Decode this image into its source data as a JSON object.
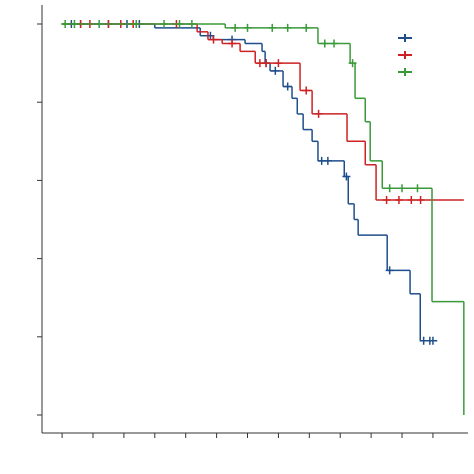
{
  "chart_data": {
    "type": "step",
    "xlim": [
      -0.65,
      13.07
    ],
    "xticks": [
      0,
      1,
      2,
      3,
      4,
      5,
      6,
      7,
      8,
      9,
      10,
      11,
      12
    ],
    "ylim": [
      -0.046,
      1.0
    ],
    "yticks": [
      0,
      0.2,
      0.4,
      0.6,
      0.8,
      1.0
    ],
    "legend": "top-right",
    "series": [
      {
        "color": "#1f4e8c",
        "x": [
          0,
          3.0,
          4.47,
          4.89,
          5.92,
          6.47,
          6.57,
          6.73,
          7.15,
          7.44,
          7.61,
          7.8,
          8.09,
          8.28,
          9.13,
          9.26,
          9.45,
          9.58,
          10.52,
          11.26,
          11.59,
          12.14
        ],
        "y": [
          1,
          0.99,
          0.97,
          0.96,
          0.95,
          0.93,
          0.9,
          0.88,
          0.84,
          0.81,
          0.77,
          0.73,
          0.7,
          0.65,
          0.61,
          0.54,
          0.5,
          0.46,
          0.37,
          0.31,
          0.19,
          0.19
        ],
        "censored": [
          0.3,
          0.6,
          1.5,
          2.1,
          2.5,
          4.8,
          5.5,
          6.6,
          6.9,
          7.3,
          8.4,
          8.6,
          9.2,
          10.6,
          11.7,
          11.9,
          12.0
        ]
      },
      {
        "color": "#cc2222",
        "x": [
          0,
          4.37,
          4.72,
          5.18,
          5.76,
          6.25,
          7.7,
          8.09,
          9.22,
          9.81,
          10.16,
          13.0
        ],
        "y": [
          1,
          0.98,
          0.96,
          0.95,
          0.93,
          0.9,
          0.83,
          0.77,
          0.7,
          0.64,
          0.55,
          0.55
        ],
        "censored": [
          0.6,
          0.9,
          1.5,
          1.9,
          2.3,
          3.7,
          4.9,
          5.5,
          6.4,
          6.6,
          7.0,
          7.9,
          8.3,
          10.5,
          10.9,
          11.3,
          11.6
        ]
      },
      {
        "color": "#3a9a3a",
        "x": [
          0,
          5.28,
          8.28,
          9.32,
          9.48,
          9.81,
          9.97,
          10.36,
          11.97,
          13.0
        ],
        "y": [
          1,
          0.99,
          0.95,
          0.9,
          0.81,
          0.75,
          0.65,
          0.58,
          0.29,
          0
        ],
        "censored": [
          0.1,
          0.4,
          1.2,
          2.4,
          3.3,
          3.8,
          4.2,
          5.6,
          6.0,
          6.8,
          7.3,
          7.9,
          8.5,
          8.8,
          9.4,
          10.6,
          11.0,
          11.5
        ]
      }
    ]
  }
}
